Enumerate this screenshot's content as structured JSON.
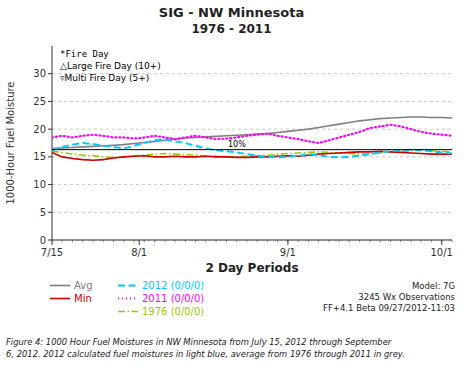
{
  "chart_data": {
    "type": "line",
    "title": "SIG - NW Minnesota",
    "subtitle": "1976 - 2011",
    "y_label": "1000-Hour Fuel Moisture",
    "x_label": "2 Day Periods",
    "x": [
      0,
      1,
      2,
      3,
      4,
      5,
      6,
      7,
      8,
      9,
      10,
      11,
      12,
      13,
      14,
      15,
      16,
      17,
      18,
      19,
      20,
      21,
      22,
      23,
      24,
      25,
      26,
      27,
      28,
      29,
      30,
      31,
      32,
      33,
      34,
      35,
      36,
      37,
      38,
      39
    ],
    "xlim": [
      0,
      39
    ],
    "xticks": [
      {
        "value": 0,
        "label": "7/15"
      },
      {
        "value": 8.5,
        "label": "8/1"
      },
      {
        "value": 23,
        "label": "9/1"
      },
      {
        "value": 38,
        "label": "10/1"
      }
    ],
    "ylim": [
      0,
      35
    ],
    "yticks": [
      0,
      5,
      10,
      15,
      20,
      25,
      30
    ],
    "grid": true,
    "legend": "bottom",
    "series": [
      {
        "name": "Avg",
        "color": "#808080",
        "line_style": "solid",
        "values": [
          16.5,
          16.6,
          16.7,
          16.8,
          16.9,
          17.0,
          17.1,
          17.2,
          17.4,
          17.6,
          17.8,
          18.0,
          18.2,
          18.4,
          18.5,
          18.6,
          18.7,
          18.8,
          18.9,
          19.0,
          19.1,
          19.2,
          19.4,
          19.6,
          19.8,
          20.0,
          20.3,
          20.6,
          20.9,
          21.2,
          21.5,
          21.7,
          21.9,
          22.0,
          22.1,
          22.2,
          22.2,
          22.1,
          22.1,
          22.0
        ]
      },
      {
        "name": "Min",
        "color": "#cc0000",
        "line_style": "solid",
        "values": [
          15.8,
          15.0,
          14.7,
          14.5,
          14.4,
          14.5,
          14.8,
          15.0,
          15.1,
          15.2,
          15.0,
          15.0,
          15.1,
          15.0,
          15.0,
          15.1,
          15.0,
          15.0,
          14.9,
          14.9,
          15.0,
          15.0,
          15.1,
          15.2,
          15.1,
          15.3,
          15.5,
          15.6,
          15.7,
          15.8,
          15.9,
          15.9,
          16.0,
          15.9,
          15.8,
          15.7,
          15.6,
          15.5,
          15.5,
          15.5
        ]
      },
      {
        "name": "2012 (0/0/0)",
        "color": "#00ccff",
        "line_style": "dashed",
        "values": [
          16.2,
          16.8,
          17.2,
          17.5,
          17.3,
          17.0,
          16.8,
          16.5,
          17.0,
          17.5,
          18.0,
          18.2,
          17.8,
          17.5,
          17.0,
          16.5,
          16.2,
          16.0,
          15.8,
          15.5,
          15.2,
          15.0,
          14.9,
          15.0,
          15.2,
          15.5,
          15.3,
          15.0,
          14.9,
          15.0,
          15.2,
          15.5,
          15.8,
          16.0,
          16.2,
          16.3,
          16.2,
          16.0,
          15.8,
          15.6
        ]
      },
      {
        "name": "2011 (0/0/0)",
        "color": "#ff00ff",
        "line_style": "dotted",
        "values": [
          18.5,
          18.8,
          18.5,
          18.8,
          19.0,
          18.8,
          18.5,
          18.5,
          18.3,
          18.5,
          18.8,
          18.5,
          18.2,
          18.5,
          18.8,
          18.5,
          18.2,
          18.3,
          18.5,
          18.8,
          19.0,
          19.2,
          18.8,
          18.5,
          18.2,
          17.8,
          17.5,
          18.0,
          18.5,
          19.0,
          19.5,
          20.2,
          20.5,
          20.8,
          20.5,
          20.0,
          19.5,
          19.2,
          19.0,
          18.8
        ]
      },
      {
        "name": "1976 (0/0/0)",
        "color": "#99cc00",
        "line_style": "dashdot",
        "values": [
          16.0,
          15.8,
          15.5,
          15.3,
          15.2,
          15.0,
          14.9,
          15.0,
          15.2,
          15.3,
          15.5,
          15.6,
          15.5,
          15.4,
          15.3,
          15.2,
          15.1,
          15.0,
          15.0,
          15.1,
          15.2,
          15.3,
          15.5,
          15.6,
          15.7,
          15.8,
          15.9,
          15.8,
          15.7,
          15.6,
          15.5,
          15.6,
          15.7,
          15.8,
          16.0,
          16.1,
          16.2,
          16.1,
          16.0,
          15.9
        ]
      }
    ],
    "annotations": [
      {
        "text": "10%",
        "y": 16.3
      }
    ],
    "notes": [
      "*Fire Day",
      "△Large Fire Day (10+)",
      "▿Multi Fire Day (5+)"
    ],
    "model_text": "Model: 7G\n3245 Wx Observations\nFF+4.1 Beta 09/27/2012-11:03",
    "caption": "Figure 4:  1000 Hour Fuel Moistures in NW Minnesota from July 15, 2012 through September\n6, 2012.  2012 calculated fuel moistures in light blue, average from 1976 through 2011 in grey."
  }
}
